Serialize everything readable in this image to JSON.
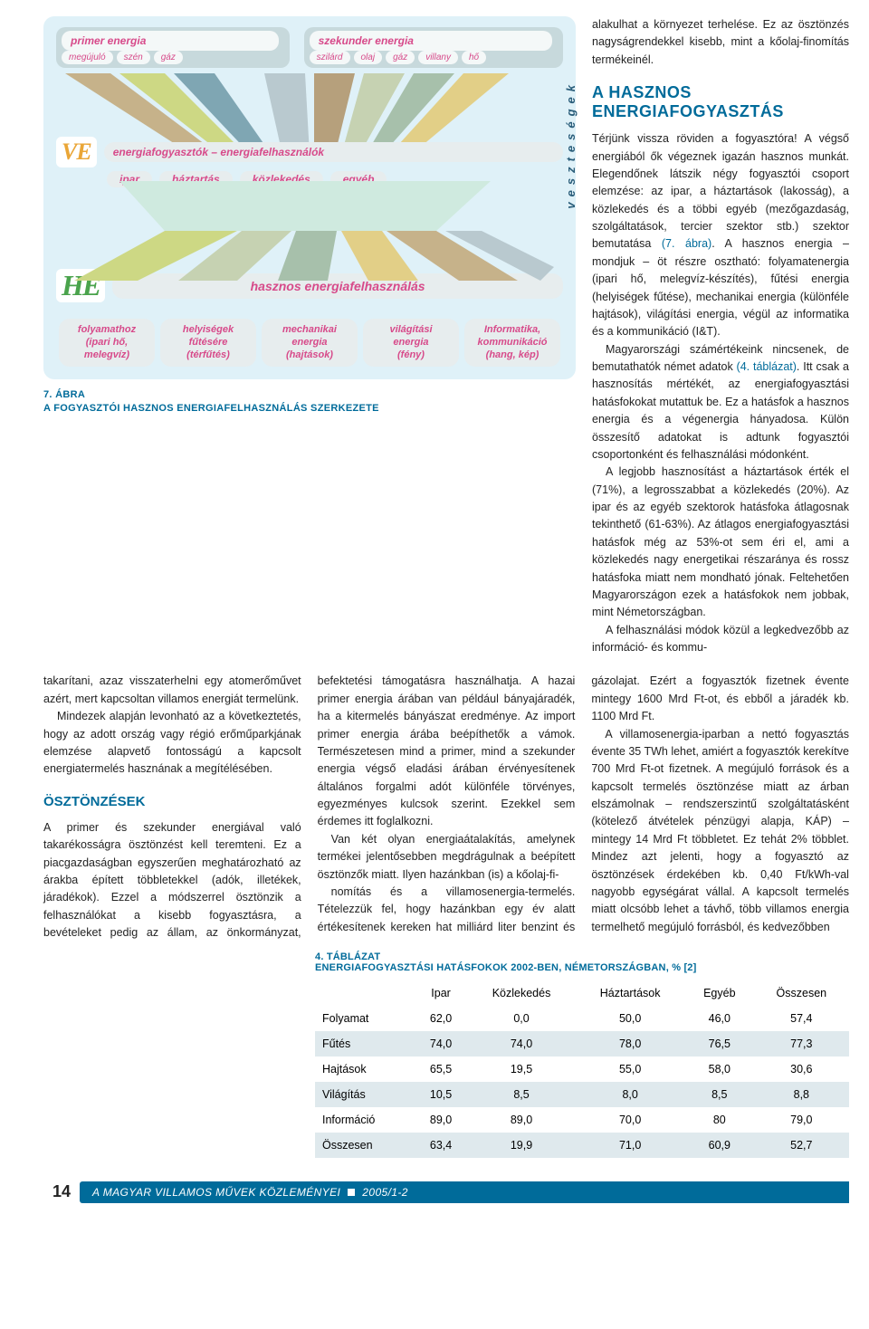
{
  "figure7": {
    "primer_label": "primer energia",
    "primer_subs": [
      "megújuló",
      "szén",
      "gáz"
    ],
    "szek_label": "szekunder energia",
    "szek_subs": [
      "szilárd",
      "olaj",
      "gáz",
      "villany",
      "hő"
    ],
    "row2_title": "energiafogyasztók – energiafelhasználók",
    "row2_items": [
      "ipar",
      "háztartás",
      "közlekedés",
      "egyéb"
    ],
    "VE": "VE",
    "HE": "HE",
    "he_bar": "hasznos energiafelhasználás",
    "vesz": "veszteségek",
    "five": [
      {
        "t": "folyamathoz",
        "s": "(ipari hő,\nmelegvíz)"
      },
      {
        "t": "helyiségek\nfűtésére",
        "s": "(térfűtés)"
      },
      {
        "t": "mechanikai\nenergia",
        "s": "(hajtások)"
      },
      {
        "t": "világítási\nenergia",
        "s": "(fény)"
      },
      {
        "t": "Informatika,\nkommunikáció",
        "s": "(hang, kép)"
      }
    ],
    "caption_n": "7. ÁBRA",
    "caption": "A FOGYASZTÓI HASZNOS ENERGIAFELHASZNÁLÁS SZERKEZETE",
    "colors": {
      "frame_bg": "#dff1f8",
      "chip_bg": "rgba(255,255,255,0.8)",
      "band_bg": "#c7d9dc",
      "bar_bg": "#e7edee",
      "accent": "#d74a8a",
      "ve": "#eaa637",
      "he": "#4aa34c",
      "brand": "#006b9a",
      "triangles": [
        "#c6b28a",
        "#cdd884",
        "#7fa6b3",
        "#b9c9cf",
        "#b6a07c",
        "#c6d2b2",
        "#a7c0ab",
        "#e2cf87",
        "#c8b8a0"
      ]
    }
  },
  "aside_top": [
    "alakulhat a környezet terhelése. Ez az ösztönzés nagyságrendekkel kisebb, mint a kőolaj-finomítás termékeinél."
  ],
  "h2": "A HASZNOS ENERGIAFOGYASZTÁS",
  "aside_after_h2": [
    "Térjünk vissza röviden a fogyasztóra! A végső energiából ők végeznek igazán hasznos munkát. Elegendőnek látszik négy fogyasztói csoport elemzése: az ipar, a háztartások (lakosság), a közlekedés és a többi egyéb (mezőgazdaság, szolgáltatások, tercier szektor stb.) szektor bemutatása (7. ábra). A hasznos energia – mondjuk – öt részre osztható: folyamatenergia (ipari hő, melegvíz-készítés), fűtési energia (helyiségek fűtése), mechanikai energia (különféle hajtások), világítási energia, végül az informatika és a kommunikáció (I&T).",
    "Magyarországi számértékeink nincsenek, de bemutathatók német adatok (4. táblázat). Itt csak a hasznosítás mértékét, az energiafogyasztási hatásfokokat mutattuk be. Ez a hatásfok a hasznos energia és a végenergia hányadosa. Külön összesítő adatokat is adtunk fogyasztói csoportonként és felhasználási módonként.",
    "A legjobb hasznosítást a háztartások érték el (71%), a legrosszabbat a közlekedés (20%). Az ipar és az egyéb szektorok hatásfoka átlagosnak tekinthető (61-63%). Az átlagos energiafogyasztási hatásfok még az 53%-ot sem éri el, ami a közlekedés nagy energetikai részaránya és rossz hatásfoka miatt nem mondható jónak. Feltehetően Magyarországon ezek a hatásfokok nem jobbak, mint Németországban.",
    "A felhasználási módok közül a legkedvezőbb az információ- és kommu-"
  ],
  "col_text": {
    "p1": "takarítani, azaz visszaterhelni egy atomerőművet azért, mert kapcsoltan villamos energiát termelünk.",
    "p2": "Mindezek alapján levonható az a következtetés, hogy az adott ország vagy régió erőműparkjának elemzése alapvető fontosságú a kapcsolt energiatermelés hasznának a megítélésében.",
    "h3_1": "ÖSZTÖNZÉSEK",
    "p3": "A primer és szekunder energiával való takarékosságra ösztönzést kell teremteni. Ez a piacgazdaságban egyszerűen meghatározható az árakba épített többletekkel (adók, illetékek, járadékok). Ezzel a módszerrel ösztönzik a felhasználókat a kisebb fogyasztásra, a bevételeket pedig az állam, az önkormányzat, befektetési támogatásra használhatja. A hazai primer energia árában van például bányajáradék, ha a kitermelés bányászat eredménye. Az import primer energia árába beépíthetők a vámok. Természetesen mind a primer, mind a szekunder energia végső eladási árában érvényesítenek általános forgalmi adót különféle törvényes, egyezményes kulcsok szerint. Ezekkel sem érdemes itt foglalkozni.",
    "p4": "Van két olyan energiaátalakítás, amelynek termékei jelentősebben megdrágulnak a beépített ösztönzők miatt. Ilyen hazánkban (is) a kőolaj-fi-",
    "p5": "nomítás és a villamosenergia-termelés. Tételezzük fel, hogy hazánkban egy év alatt értékesítenek kereken hat milliárd liter benzint és gázolajat. Ezért a fogyasztók fizetnek évente mintegy 1600 Mrd Ft-ot, és ebből a járadék kb. 1100 Mrd Ft.",
    "p6": "A villamosenergia-iparban a nettó fogyasztás évente 35 TWh lehet, amiért a fogyasztók kerekítve 700 Mrd Ft-ot fizetnek. A megújuló források és a kapcsolt termelés ösztönzése miatt az árban elszámolnak – rendszerszintű szolgáltatásként (kötelező átvételek pénzügyi alapja, KÁP) – mintegy 14 Mrd Ft többletet. Ez tehát 2% többlet. Mindez azt jelenti, hogy a fogyasztó az ösztönzések érdekében kb. 0,40 Ft/kWh-val nagyobb egységárat vállal. A kapcsolt termelés miatt olcsóbb lehet a távhő, több villamos energia termelhető megújuló forrásból, és kedvezőbben"
  },
  "table4": {
    "caption_n": "4. TÁBLÁZAT",
    "caption": "ENERGIAFOGYASZTÁSI HATÁSFOKOK 2002-BEN, NÉMETORSZÁGBAN, % [2]",
    "columns": [
      "",
      "Ipar",
      "Közlekedés",
      "Háztartások",
      "Egyéb",
      "Összesen"
    ],
    "rows": [
      [
        "Folyamat",
        "62,0",
        "0,0",
        "50,0",
        "46,0",
        "57,4"
      ],
      [
        "Fűtés",
        "74,0",
        "74,0",
        "78,0",
        "76,5",
        "77,3"
      ],
      [
        "Hajtások",
        "65,5",
        "19,5",
        "55,0",
        "58,0",
        "30,6"
      ],
      [
        "Világítás",
        "10,5",
        "8,5",
        "8,0",
        "8,5",
        "8,8"
      ],
      [
        "Információ",
        "89,0",
        "89,0",
        "70,0",
        "80",
        "79,0"
      ],
      [
        "Összesen",
        "63,4",
        "19,9",
        "71,0",
        "60,9",
        "52,7"
      ]
    ],
    "row_alt_bg": "#dfe9ed",
    "font_size": 12.5
  },
  "footer": {
    "page": "14",
    "journal": "A MAGYAR VILLAMOS MŰVEK KÖZLEMÉNYEI",
    "issue": "2005/1-2",
    "bar_bg": "#006b9a"
  }
}
